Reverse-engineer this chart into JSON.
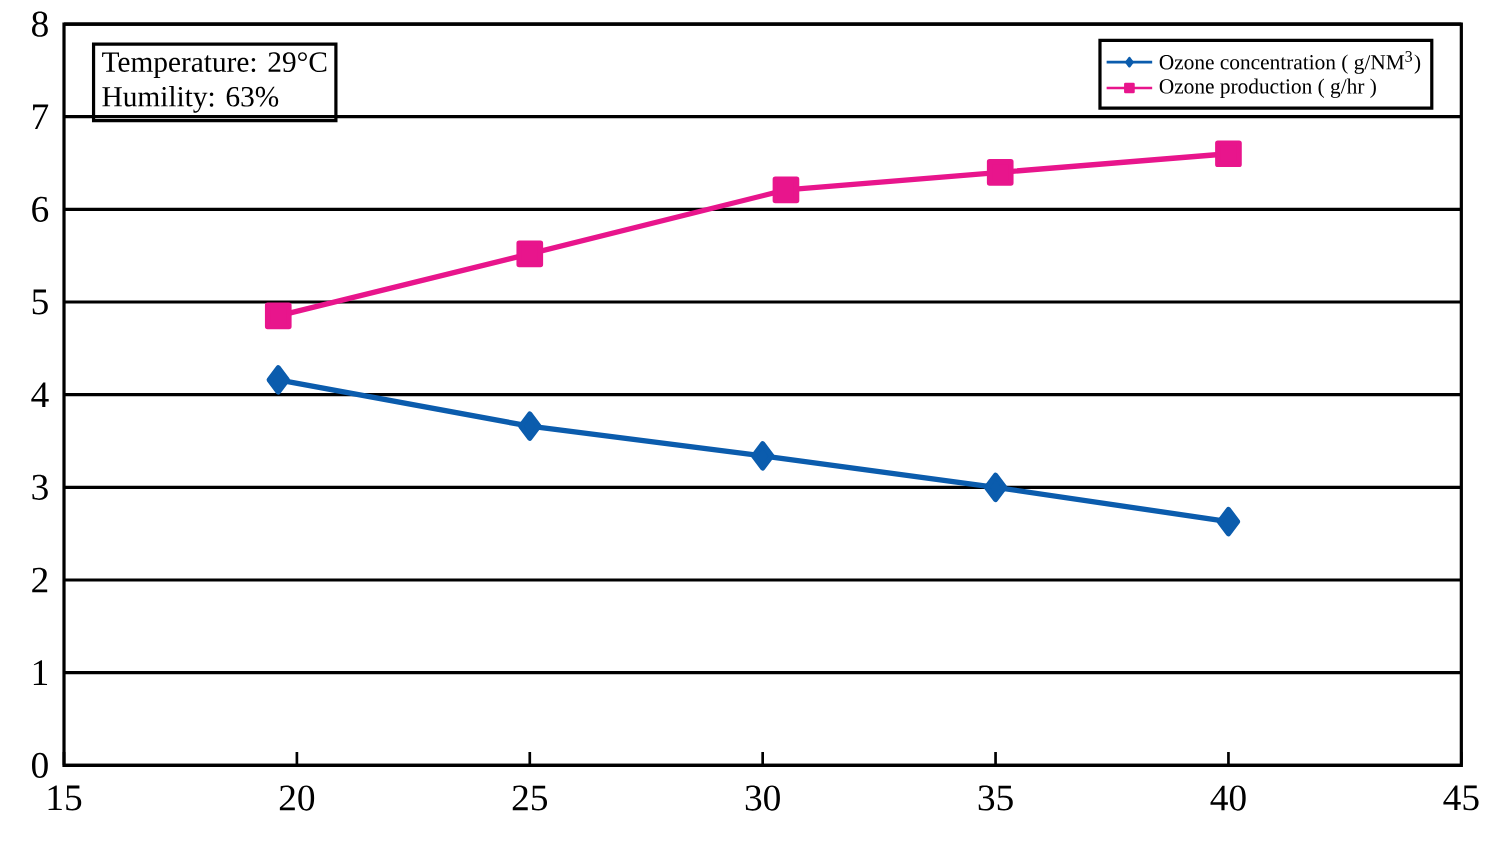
{
  "chart_data": {
    "type": "line",
    "series": [
      {
        "name": "Ozone concentration ( g/NM$^{3}$)",
        "color": "#0b5cad",
        "marker": "diamond",
        "x": [
          19.6,
          25,
          30,
          35,
          40
        ],
        "values": [
          4.16,
          3.66,
          3.34,
          3.0,
          2.63
        ]
      },
      {
        "name": "Ozone production ( g/hr )",
        "color": "#e8158c",
        "marker": "square",
        "x": [
          19.6,
          25,
          30.5,
          35.1,
          40
        ],
        "values": [
          4.85,
          5.52,
          6.21,
          6.4,
          6.6
        ]
      }
    ],
    "xlim": [
      15,
      45
    ],
    "xticks": [
      15,
      20,
      25,
      30,
      35,
      40,
      45
    ],
    "ylim": [
      0,
      8
    ],
    "yticks": [
      0,
      1,
      2,
      3,
      4,
      5,
      6,
      7,
      8
    ],
    "grid": "y",
    "legend": "top right",
    "line_style": "solid",
    "annotations": [
      "Temperature: 29°C",
      "Humility: 63%"
    ]
  }
}
